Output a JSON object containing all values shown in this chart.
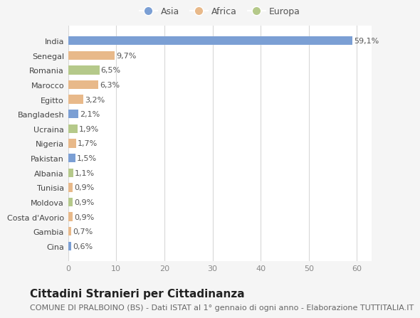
{
  "countries": [
    "India",
    "Senegal",
    "Romania",
    "Marocco",
    "Egitto",
    "Bangladesh",
    "Ucraina",
    "Nigeria",
    "Pakistan",
    "Albania",
    "Tunisia",
    "Moldova",
    "Costa d'Avorio",
    "Gambia",
    "Cina"
  ],
  "values": [
    59.1,
    9.7,
    6.5,
    6.3,
    3.2,
    2.1,
    1.9,
    1.7,
    1.5,
    1.1,
    0.9,
    0.9,
    0.9,
    0.7,
    0.6
  ],
  "labels": [
    "59,1%",
    "9,7%",
    "6,5%",
    "6,3%",
    "3,2%",
    "2,1%",
    "1,9%",
    "1,7%",
    "1,5%",
    "1,1%",
    "0,9%",
    "0,9%",
    "0,9%",
    "0,7%",
    "0,6%"
  ],
  "continents": [
    "Asia",
    "Africa",
    "Europa",
    "Africa",
    "Africa",
    "Asia",
    "Europa",
    "Africa",
    "Asia",
    "Europa",
    "Africa",
    "Europa",
    "Africa",
    "Africa",
    "Asia"
  ],
  "colors": {
    "Asia": "#7b9fd4",
    "Africa": "#e8b98a",
    "Europa": "#b5c98a"
  },
  "legend_labels": [
    "Asia",
    "Africa",
    "Europa"
  ],
  "title": "Cittadini Stranieri per Cittadinanza",
  "subtitle": "COMUNE DI PRALBOINO (BS) - Dati ISTAT al 1° gennaio di ogni anno - Elaborazione TUTTITALIA.IT",
  "xlim": [
    0,
    63
  ],
  "xticks": [
    0,
    10,
    20,
    30,
    40,
    50,
    60
  ],
  "background_color": "#f5f5f5",
  "plot_bg_color": "#ffffff",
  "grid_color": "#d8d8d8",
  "bar_height": 0.6,
  "title_fontsize": 11,
  "subtitle_fontsize": 8,
  "tick_fontsize": 8,
  "label_fontsize": 8,
  "legend_fontsize": 9
}
